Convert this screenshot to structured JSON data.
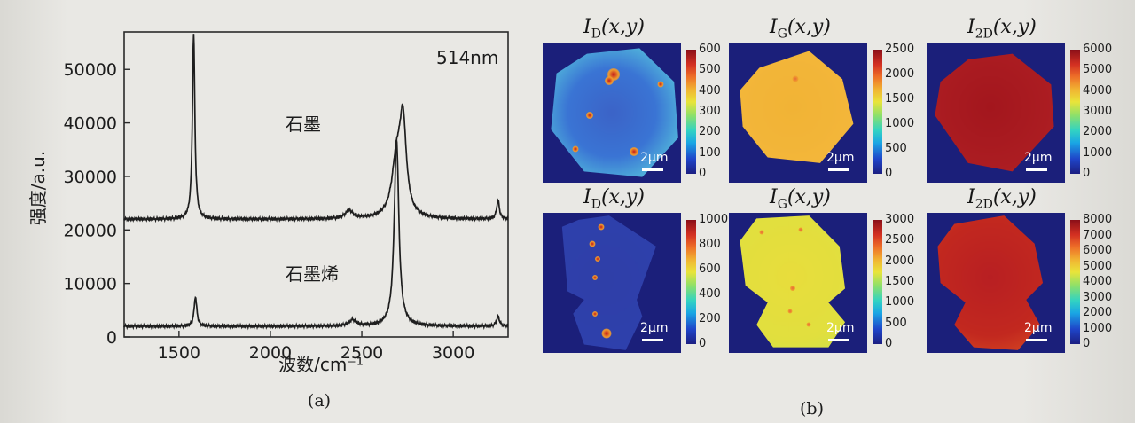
{
  "chart_data": [
    {
      "type": "line",
      "panel": "(a)",
      "title": "",
      "annotation_wavelength": "514nm",
      "xlabel": "波数/cm⁻¹",
      "ylabel": "强度/a.u.",
      "xlim": [
        1200,
        3300
      ],
      "ylim": [
        0,
        57000
      ],
      "x_ticks": [
        1500,
        2000,
        2500,
        3000
      ],
      "x_tick_labels": [
        "1500",
        "2000",
        "2500",
        "3000"
      ],
      "y_ticks": [
        0,
        10000,
        20000,
        30000,
        40000,
        50000
      ],
      "y_tick_labels": [
        "0",
        "10000",
        "20000",
        "30000",
        "40000",
        "50000"
      ],
      "grid": false,
      "series": [
        {
          "name": "石墨",
          "baseline": 22000,
          "peaks": [
            {
              "x": 1580,
              "height": 34500,
              "width": 8
            },
            {
              "x": 2430,
              "height": 1500,
              "width": 25
            },
            {
              "x": 2690,
              "height": 10000,
              "width": 30
            },
            {
              "x": 2725,
              "height": 17000,
              "width": 22
            },
            {
              "x": 3245,
              "height": 3500,
              "width": 9
            }
          ]
        },
        {
          "name": "石墨烯",
          "baseline": 2000,
          "peaks": [
            {
              "x": 1590,
              "height": 5500,
              "width": 9
            },
            {
              "x": 2450,
              "height": 1100,
              "width": 25
            },
            {
              "x": 2690,
              "height": 35000,
              "width": 15
            },
            {
              "x": 3245,
              "height": 1800,
              "width": 10
            }
          ]
        }
      ]
    },
    {
      "type": "heatmap",
      "panel": "(b)",
      "scale_bar": "2μm",
      "maps": [
        {
          "id": "id-top",
          "title_main": "I",
          "title_sub": "D",
          "title_tail": "(x,y)",
          "cb_ticks": [
            "600",
            "500",
            "400",
            "300",
            "200",
            "100",
            "0"
          ],
          "cb_max": 600
        },
        {
          "id": "ig-top",
          "title_main": "I",
          "title_sub": "G",
          "title_tail": "(x,y)",
          "cb_ticks": [
            "2500",
            "2000",
            "1500",
            "1000",
            "500",
            "0"
          ],
          "cb_max": 2500
        },
        {
          "id": "i2d-top",
          "title_main": "I",
          "title_sub": "2D",
          "title_tail": "(x,y)",
          "cb_ticks": [
            "6000",
            "5000",
            "4000",
            "3000",
            "2000",
            "1000",
            "0"
          ],
          "cb_max": 6000
        },
        {
          "id": "id-bottom",
          "title_main": "I",
          "title_sub": "D",
          "title_tail": "(x,y)",
          "cb_ticks": [
            "1000",
            "800",
            "600",
            "400",
            "200",
            "0"
          ],
          "cb_max": 1000
        },
        {
          "id": "ig-bottom",
          "title_main": "I",
          "title_sub": "G",
          "title_tail": "(x,y)",
          "cb_ticks": [
            "3000",
            "2500",
            "2000",
            "1500",
            "1000",
            "500",
            "0"
          ],
          "cb_max": 3000
        },
        {
          "id": "i2d-bottom",
          "title_main": "I",
          "title_sub": "2D",
          "title_tail": "(x,y)",
          "cb_ticks": [
            "8000",
            "7000",
            "6000",
            "5000",
            "4000",
            "3000",
            "2000",
            "1000",
            "0"
          ],
          "cb_max": 8000
        }
      ]
    }
  ],
  "captions": {
    "panel_a": "(a)",
    "panel_b": "(b)"
  }
}
